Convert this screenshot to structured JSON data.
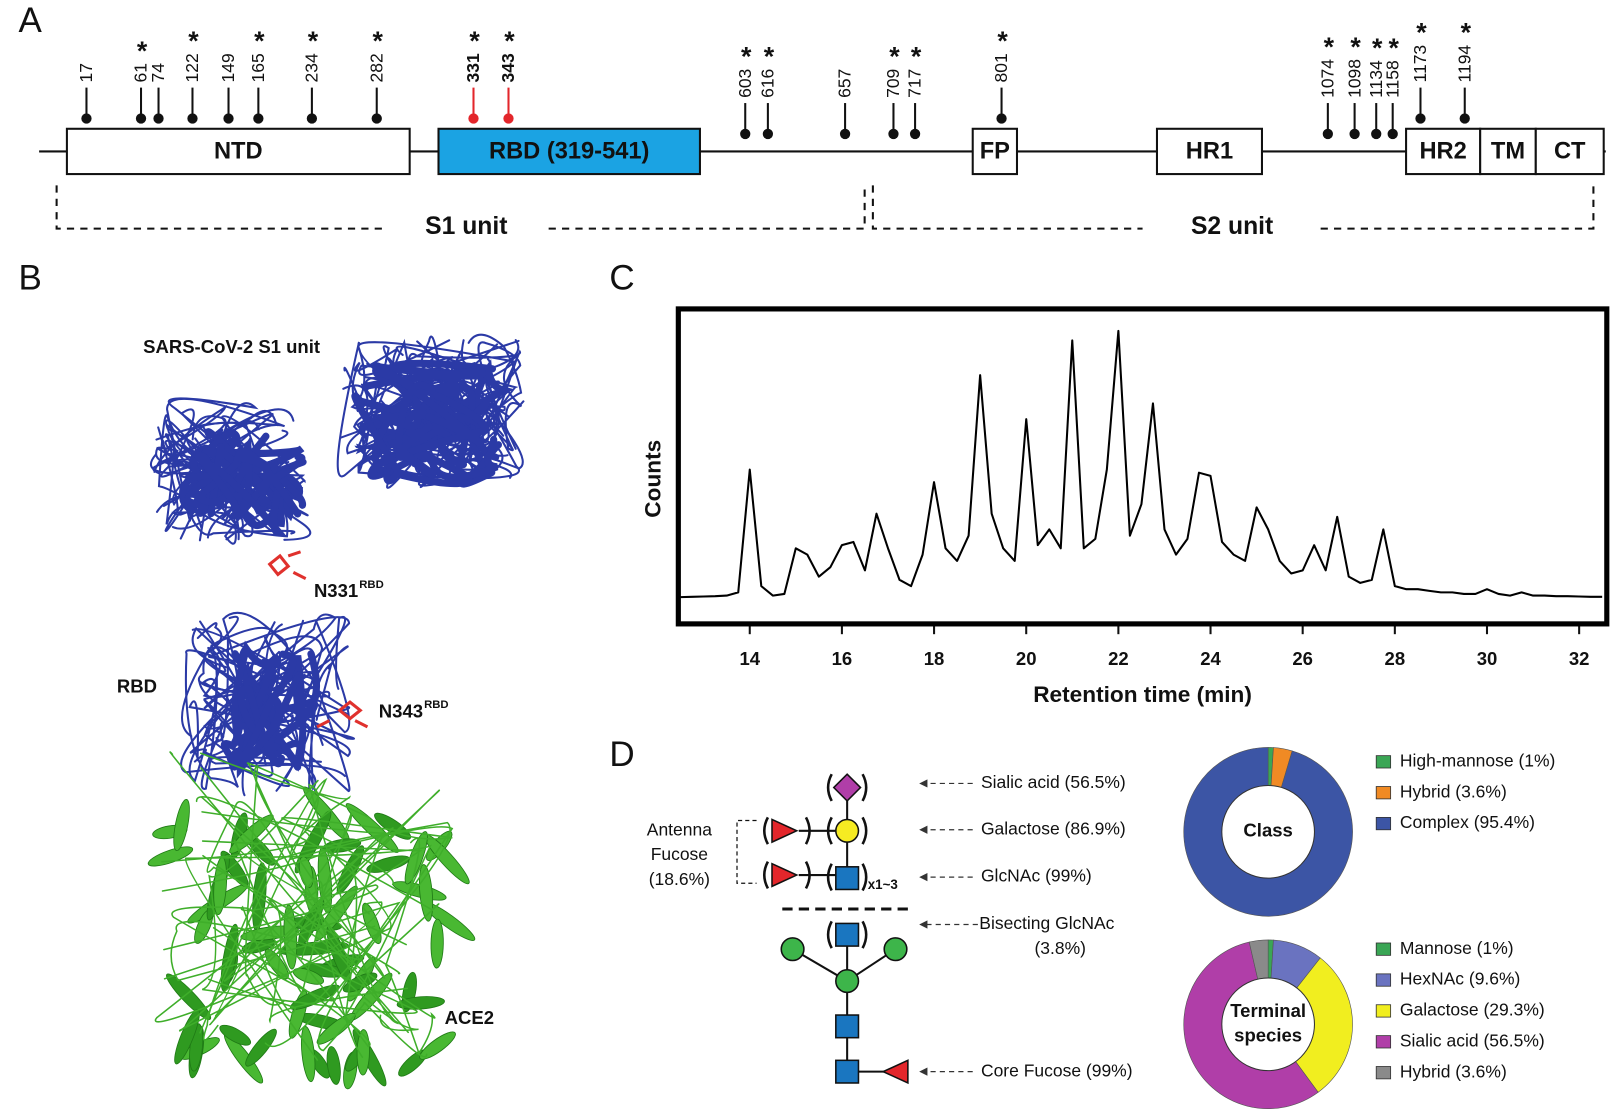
{
  "panel_a": {
    "label": "A",
    "sites": [
      {
        "site": "17"
      },
      {
        "site": "61",
        "asterisk": "*"
      },
      {
        "site": "74"
      },
      {
        "site": "122",
        "asterisk": "*"
      },
      {
        "site": "149"
      },
      {
        "site": "165",
        "asterisk": "*"
      },
      {
        "site": "234",
        "asterisk": "*"
      },
      {
        "site": "282",
        "asterisk": "*"
      },
      {
        "site": "331",
        "asterisk": "*",
        "color": "#e3262b"
      },
      {
        "site": "343",
        "asterisk": "*",
        "color": "#e3262b"
      },
      {
        "site": "603",
        "asterisk": "*"
      },
      {
        "site": "616",
        "asterisk": "*"
      },
      {
        "site": "657"
      },
      {
        "site": "709",
        "asterisk": "*"
      },
      {
        "site": "717",
        "asterisk": "*"
      },
      {
        "site": "801",
        "asterisk": "*"
      },
      {
        "site": "1074",
        "asterisk": "*"
      },
      {
        "site": "1098",
        "asterisk": "*"
      },
      {
        "site": "1134",
        "asterisk": "*"
      },
      {
        "site": "1158",
        "asterisk": "*"
      },
      {
        "site": "1173",
        "asterisk": "*"
      },
      {
        "site": "1194",
        "asterisk": "*"
      }
    ],
    "domains": [
      "NTD",
      "RBD (319-541)",
      "FP",
      "HR1",
      "HR2",
      "TM",
      "CT"
    ],
    "units": [
      "S1 unit",
      "S2 unit"
    ]
  },
  "panel_b": {
    "label": "B",
    "s1": "SARS-CoV-2 S1 unit",
    "rbd": "RBD",
    "n331": "N331",
    "n331_sup": "RBD",
    "n343": "N343",
    "n343_sup": "RBD",
    "ace2": "ACE2"
  },
  "panel_c": {
    "label": "C"
  },
  "panel_d": {
    "label": "D",
    "annotations": [
      "Sialic acid (56.5%)",
      "Galactose (86.9%)",
      "GlcNAc (99%)",
      "Bisecting GlcNAc",
      "(3.8%)",
      "Core Fucose (99%)"
    ],
    "antenna": [
      "Antenna",
      "Fucose",
      "(18.6%)"
    ],
    "repeat": "x1~3"
  },
  "chart_data": [
    {
      "type": "line",
      "x_label": "Retention time (min)",
      "y_label": "Counts",
      "color": "#000000",
      "xlim": [
        12.45,
        32.6
      ],
      "xticks": [
        14,
        16,
        18,
        20,
        22,
        24,
        26,
        28,
        30,
        32
      ],
      "ylim": [
        0,
        100
      ],
      "x": [
        12.5,
        12.75,
        13,
        13.25,
        13.5,
        13.75,
        14,
        14.25,
        14.5,
        14.75,
        15,
        15.25,
        15.5,
        15.75,
        16,
        16.25,
        16.5,
        16.75,
        17,
        17.25,
        17.5,
        17.75,
        18,
        18.25,
        18.5,
        18.75,
        19,
        19.25,
        19.5,
        19.75,
        20,
        20.25,
        20.5,
        20.75,
        21,
        21.25,
        21.5,
        21.75,
        22,
        22.25,
        22.5,
        22.75,
        23,
        23.25,
        23.5,
        23.75,
        24,
        24.25,
        24.5,
        24.75,
        25,
        25.25,
        25.5,
        25.75,
        26,
        26.25,
        26.5,
        26.75,
        27,
        27.25,
        27.5,
        27.75,
        28,
        28.25,
        28.5,
        28.75,
        29,
        29.25,
        29.5,
        29.75,
        30,
        30.25,
        30.5,
        30.75,
        31,
        31.25,
        31.5,
        31.75,
        32,
        32.25,
        32.5
      ],
      "values": [
        8.5,
        8.6,
        8.7,
        8.8,
        9,
        10,
        49,
        12,
        9,
        9.5,
        24,
        22,
        15,
        18,
        25,
        26,
        17,
        35,
        24,
        14,
        12,
        22,
        45,
        24,
        20,
        28,
        79,
        35,
        24,
        20,
        65,
        25,
        30,
        24,
        90,
        24,
        27,
        49,
        93,
        28,
        38,
        70,
        30,
        22,
        27,
        48,
        47,
        26,
        22,
        20,
        37,
        30,
        20,
        16,
        17,
        25,
        17,
        34,
        15,
        13,
        14,
        30,
        12,
        11,
        11,
        10.5,
        10,
        10,
        9.5,
        9.5,
        11,
        9.5,
        9,
        10,
        9,
        9,
        8.8,
        8.8,
        8.7,
        8.6,
        8.6
      ]
    },
    {
      "type": "donut",
      "center_label": [
        "Class"
      ],
      "categories": [
        "High-mannose (1%)",
        "Hybrid (3.6%)",
        "Complex (95.4%)"
      ],
      "values": [
        1,
        3.6,
        95.4
      ],
      "colors": [
        "#3aa655",
        "#f08a24",
        "#3c55a5"
      ]
    },
    {
      "type": "donut",
      "center_label": [
        "Terminal",
        "species"
      ],
      "categories": [
        "Mannose (1%)",
        "HexNAc (9.6%)",
        "Galactose (29.3%)",
        "Sialic acid (56.5%)",
        "Hybrid (3.6%)"
      ],
      "values": [
        1,
        9.6,
        29.3,
        56.5,
        3.6
      ],
      "colors": [
        "#3aa655",
        "#6a73c0",
        "#f1ee1f",
        "#b03ea8",
        "#8a8a8a"
      ]
    }
  ]
}
